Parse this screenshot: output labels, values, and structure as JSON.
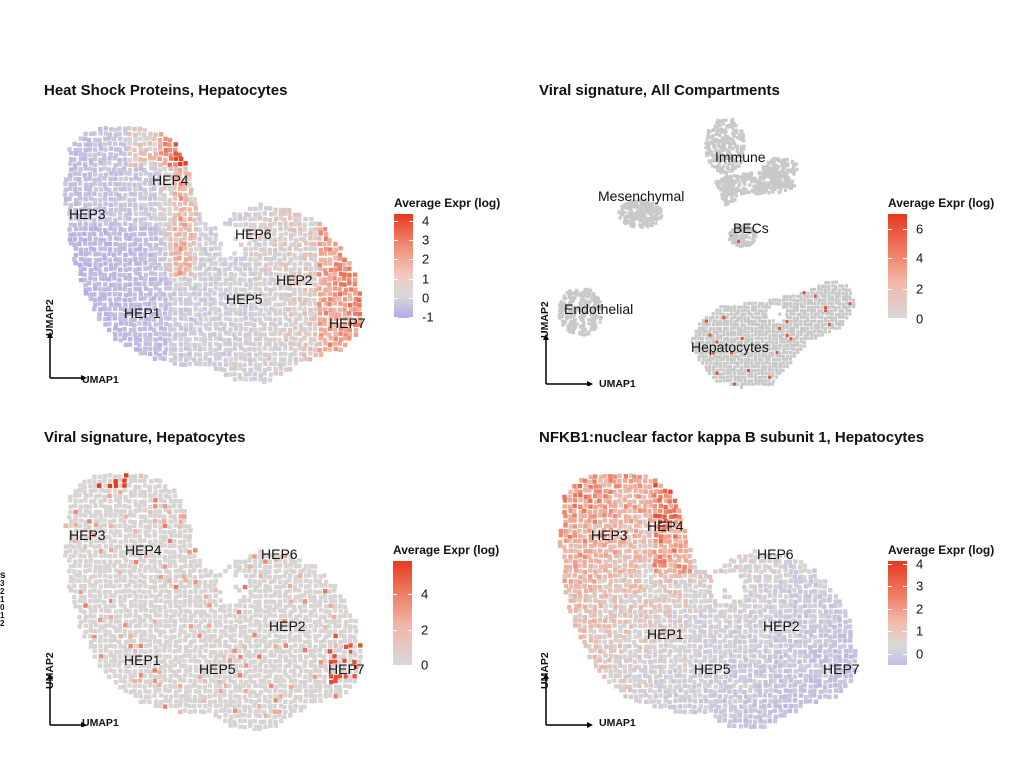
{
  "colors": {
    "high": "#e53a1f",
    "mid": "#d9d9d9",
    "low": "#b5a8e6",
    "na": "#c9c9c9"
  },
  "axes": {
    "x": "UMAP1",
    "y": "UMAP2"
  },
  "edge_fragment": {
    "letter": "s",
    "ticks": [
      "3",
      "2",
      "1",
      "0",
      "1",
      "2"
    ]
  },
  "panels": [
    {
      "title": "Heat Shock Proteins, Hepatocytes",
      "legend": {
        "title": "Average Expr (log)",
        "ticks": [
          "4",
          "3",
          "2",
          "1",
          "0",
          "-1"
        ]
      },
      "labels": [
        "HEP4",
        "HEP3",
        "HEP6",
        "HEP2",
        "HEP5",
        "HEP1",
        "HEP7"
      ]
    },
    {
      "title": "Viral signature, All Compartments",
      "legend": {
        "title": "Average Expr (log)",
        "ticks": [
          "6",
          "4",
          "2",
          "0"
        ]
      },
      "labels": [
        "Immune",
        "Mesenchymal",
        "BECs",
        "Endothelial",
        "Hepatocytes"
      ]
    },
    {
      "title": "Viral signature, Hepatocytes",
      "legend": {
        "title": "Average Expr (log)",
        "ticks": [
          "4",
          "2",
          "0"
        ]
      },
      "labels": [
        "HEP3",
        "HEP4",
        "HEP6",
        "HEP2",
        "HEP1",
        "HEP5",
        "HEP7"
      ]
    },
    {
      "title": "NFKB1:nuclear factor kappa B subunit 1, Hepatocytes",
      "legend": {
        "title": "Average Expr (log)",
        "ticks": [
          "4",
          "3",
          "2",
          "1",
          "0"
        ]
      },
      "labels": [
        "HEP3",
        "HEP4",
        "HEP6",
        "HEP1",
        "HEP2",
        "HEP5",
        "HEP7"
      ]
    }
  ],
  "chart_data": [
    {
      "type": "scatter",
      "title": "Heat Shock Proteins, Hepatocytes",
      "xlabel": "UMAP1",
      "ylabel": "UMAP2",
      "color_scale": {
        "title": "Average Expr (log)",
        "range": [
          -1,
          4
        ]
      },
      "clusters": [
        "HEP4",
        "HEP3",
        "HEP6",
        "HEP2",
        "HEP5",
        "HEP1",
        "HEP7"
      ]
    },
    {
      "type": "scatter",
      "title": "Viral signature, All Compartments",
      "xlabel": "UMAP1",
      "ylabel": "UMAP2",
      "color_scale": {
        "title": "Average Expr (log)",
        "range": [
          0,
          6
        ]
      },
      "clusters": [
        "Immune",
        "Mesenchymal",
        "BECs",
        "Endothelial",
        "Hepatocytes"
      ]
    },
    {
      "type": "scatter",
      "title": "Viral signature, Hepatocytes",
      "xlabel": "UMAP1",
      "ylabel": "UMAP2",
      "color_scale": {
        "title": "Average Expr (log)",
        "range": [
          0,
          4
        ]
      },
      "clusters": [
        "HEP3",
        "HEP4",
        "HEP6",
        "HEP2",
        "HEP1",
        "HEP5",
        "HEP7"
      ]
    },
    {
      "type": "scatter",
      "title": "NFKB1:nuclear factor kappa B subunit 1, Hepatocytes",
      "xlabel": "UMAP1",
      "ylabel": "UMAP2",
      "color_scale": {
        "title": "Average Expr (log)",
        "range": [
          0,
          4
        ]
      },
      "clusters": [
        "HEP3",
        "HEP4",
        "HEP6",
        "HEP1",
        "HEP2",
        "HEP5",
        "HEP7"
      ]
    }
  ]
}
